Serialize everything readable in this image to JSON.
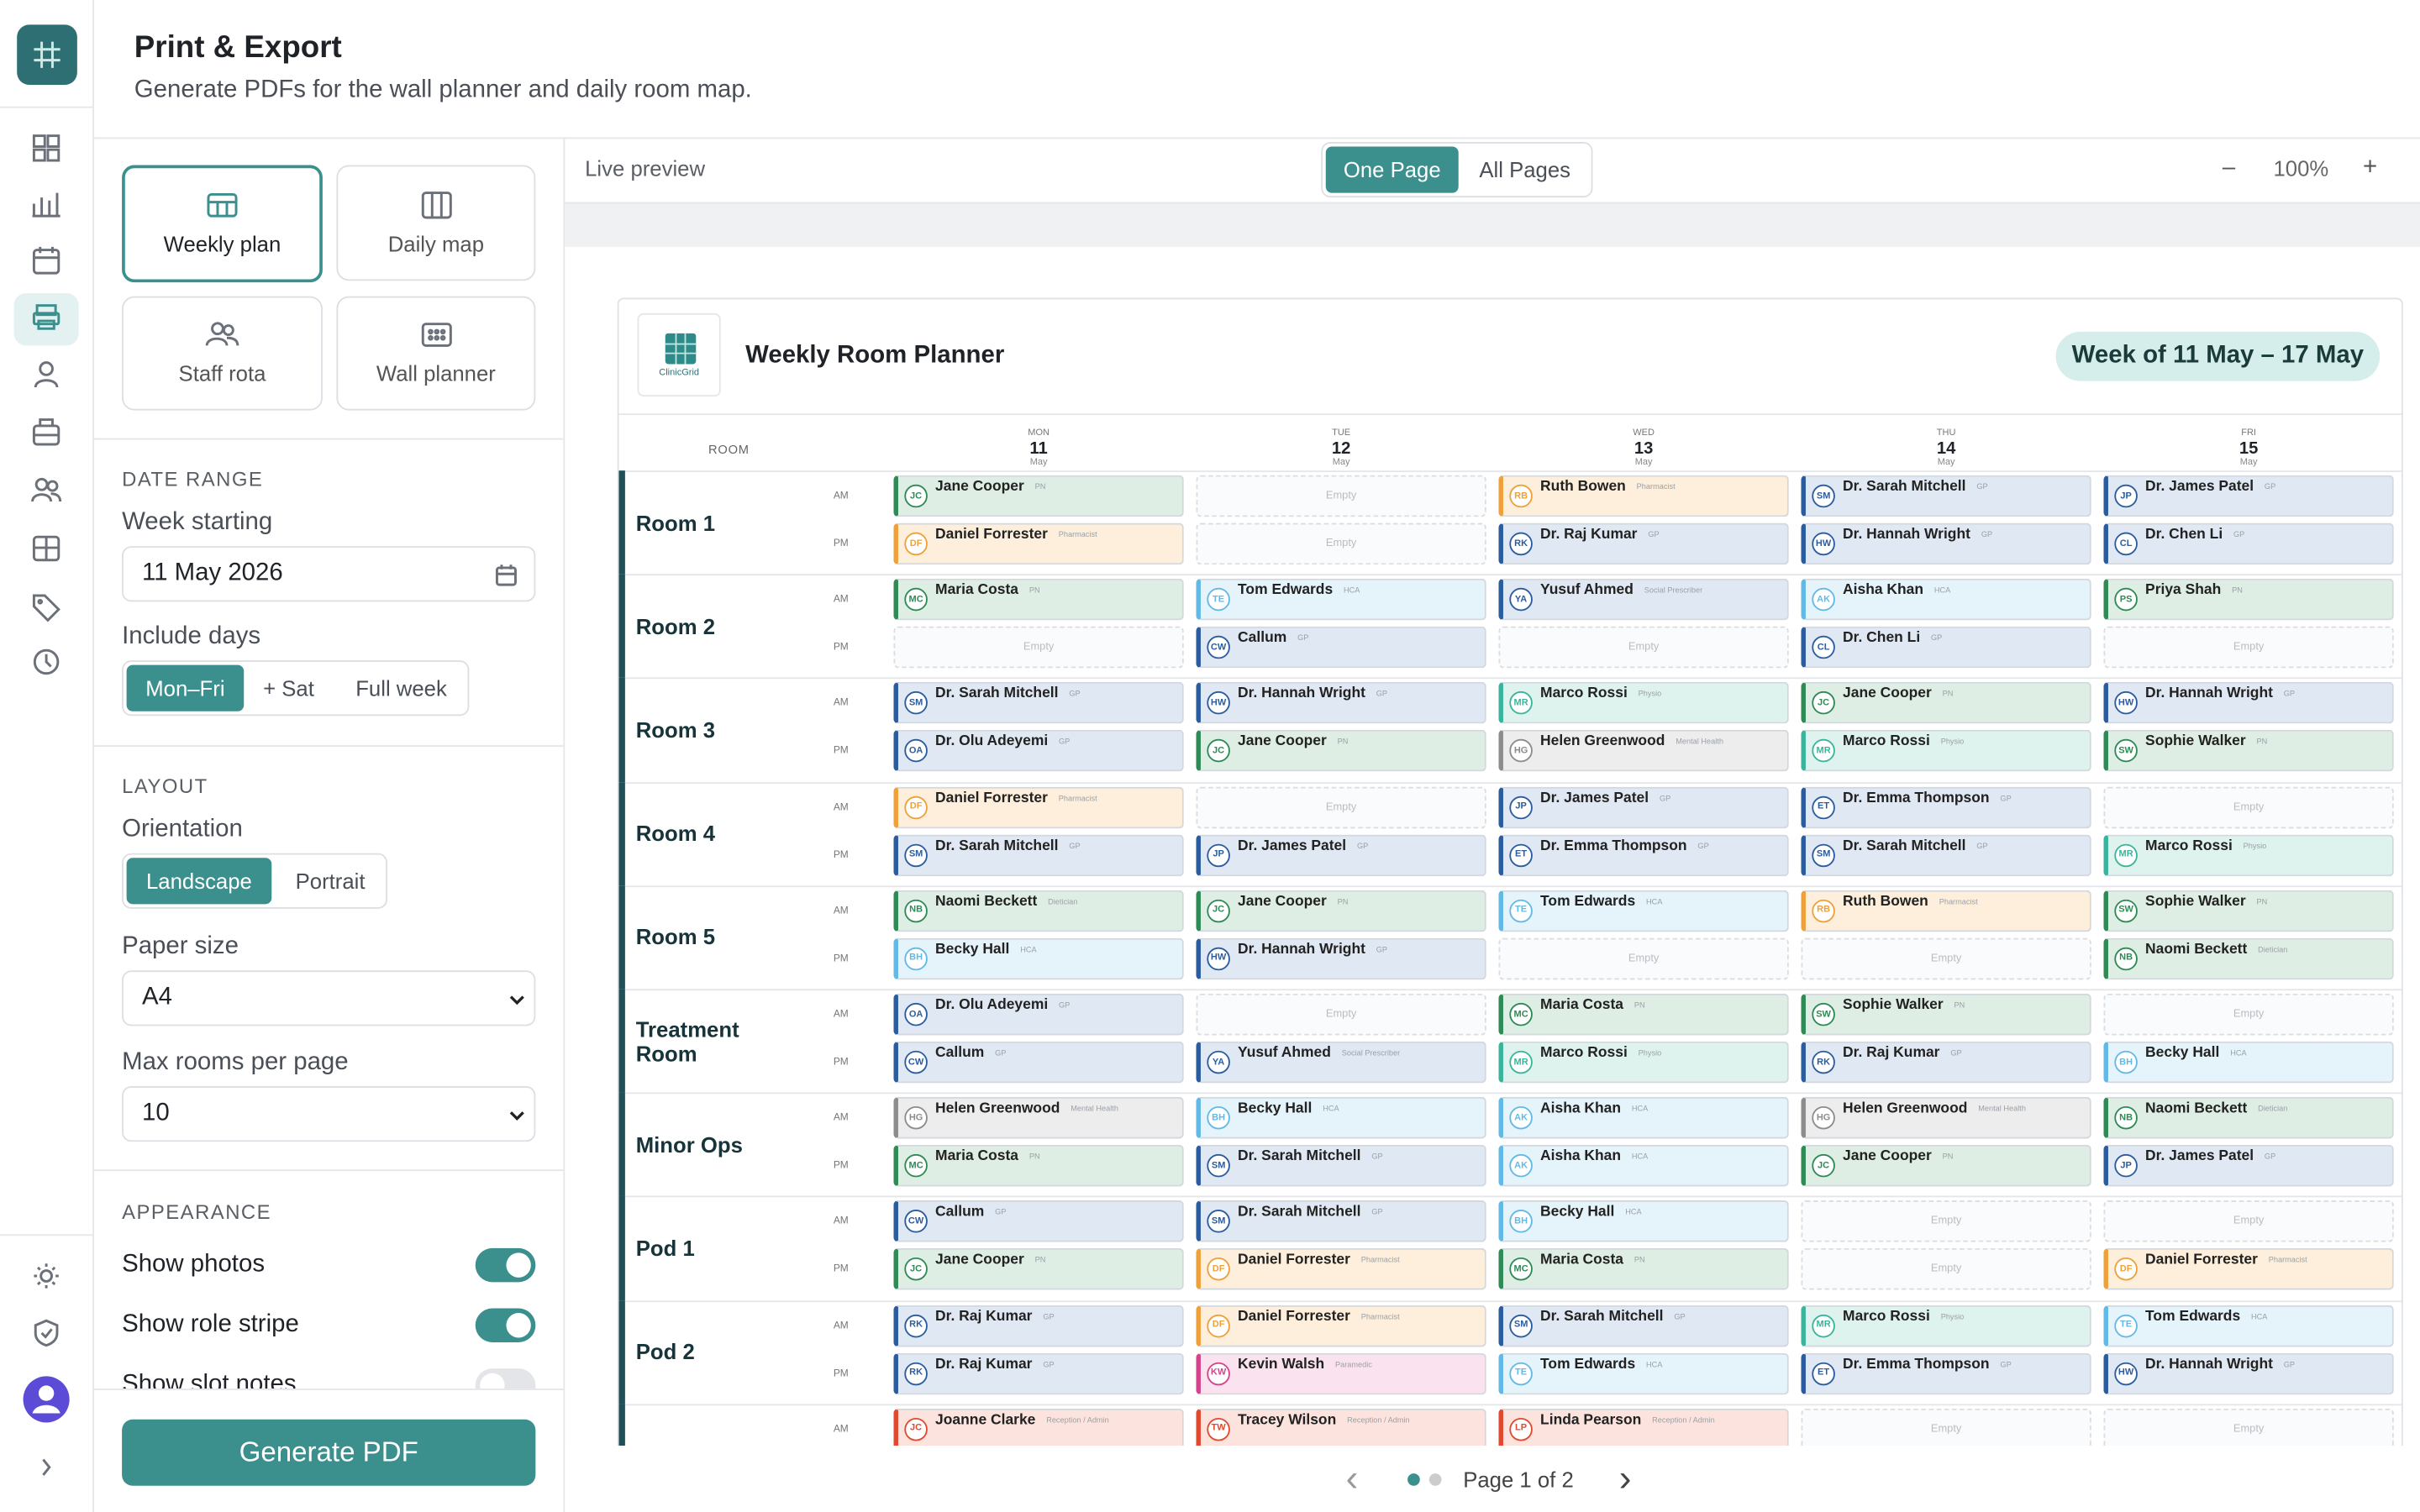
{
  "header": {
    "title": "Print & Export",
    "subtitle": "Generate PDFs for the wall planner and daily room map."
  },
  "panel": {
    "tabs": [
      "Weekly plan",
      "Daily map",
      "Staff rota",
      "Wall planner"
    ],
    "date_range": {
      "heading": "DATE RANGE",
      "week_label": "Week starting",
      "week_value": "11 May 2026",
      "include_label": "Include days",
      "include_options": [
        "Mon–Fri",
        "+ Sat",
        "Full week"
      ]
    },
    "layout": {
      "heading": "LAYOUT",
      "orientation_label": "Orientation",
      "orientation_options": [
        "Landscape",
        "Portrait"
      ],
      "paper_label": "Paper size",
      "paper_value": "A4",
      "max_rooms_label": "Max rooms per page",
      "max_rooms_value": "10"
    },
    "appearance": {
      "heading": "APPEARANCE",
      "toggles": [
        {
          "label": "Show photos",
          "on": true
        },
        {
          "label": "Show role stripe",
          "on": true
        },
        {
          "label": "Show slot notes",
          "on": false
        }
      ]
    },
    "button": "Generate PDF"
  },
  "toolbar": {
    "label": "Live preview",
    "modes": [
      "One Page",
      "All Pages"
    ],
    "zoom_out": "–",
    "zoom": "100%",
    "zoom_in": "+"
  },
  "pager": {
    "prev": "‹",
    "label": "Page 1 of 2",
    "next": "›"
  },
  "planner": {
    "logo_text": "ClinicGrid",
    "title": "Weekly Room Planner",
    "week": "Week of 11 May – 17 May",
    "room_header": "ROOM",
    "slots": [
      "AM",
      "PM"
    ],
    "days": [
      {
        "dow": "MON",
        "date": "11",
        "month": "May"
      },
      {
        "dow": "TUE",
        "date": "12",
        "month": "May"
      },
      {
        "dow": "WED",
        "date": "13",
        "month": "May"
      },
      {
        "dow": "THU",
        "date": "14",
        "month": "May"
      },
      {
        "dow": "FRI",
        "date": "15",
        "month": "May"
      }
    ],
    "role_styles": {
      "GP": {
        "stripe": "#2b5c9e",
        "fill": "#e0e8f3"
      },
      "PN": {
        "stripe": "#2f8a55",
        "fill": "#dfeee4"
      },
      "Pharmacist": {
        "stripe": "#eea13a",
        "fill": "#fdefdc"
      },
      "HCA": {
        "stripe": "#62b9e6",
        "fill": "#e5f3fb"
      },
      "Physio": {
        "stripe": "#3bb49c",
        "fill": "#dff3ee"
      },
      "Mental Health": {
        "stripe": "#8c8c8c",
        "fill": "#ededee"
      },
      "Social Prescriber": {
        "stripe": "#2b5c9e",
        "fill": "#e0e8f3"
      },
      "Dietician": {
        "stripe": "#2f8a55",
        "fill": "#dfeee4"
      },
      "Paramedic": {
        "stripe": "#d5438c",
        "fill": "#fae3ee"
      },
      "Reception / Admin": {
        "stripe": "#e04a2f",
        "fill": "#fde3de"
      }
    },
    "rooms": [
      {
        "name": "Room 1",
        "am": [
          [
            "JC",
            "Jane Cooper",
            "PN"
          ],
          [
            "Empty"
          ],
          [
            "RB",
            "Ruth Bowen",
            "Pharmacist"
          ],
          [
            "SM",
            "Dr. Sarah Mitchell",
            "GP"
          ],
          [
            "JP",
            "Dr. James Patel",
            "GP"
          ]
        ],
        "pm": [
          [
            "DF",
            "Daniel Forrester",
            "Pharmacist"
          ],
          [
            "Empty"
          ],
          [
            "RK",
            "Dr. Raj Kumar",
            "GP"
          ],
          [
            "HW",
            "Dr. Hannah Wright",
            "GP"
          ],
          [
            "CL",
            "Dr. Chen Li",
            "GP"
          ]
        ]
      },
      {
        "name": "Room 2",
        "am": [
          [
            "MC",
            "Maria Costa",
            "PN"
          ],
          [
            "TE",
            "Tom Edwards",
            "HCA"
          ],
          [
            "YA",
            "Yusuf Ahmed",
            "Social Prescriber"
          ],
          [
            "AK",
            "Aisha Khan",
            "HCA"
          ],
          [
            "PS",
            "Priya Shah",
            "PN"
          ]
        ],
        "pm": [
          [
            "Empty"
          ],
          [
            "CW",
            "Callum",
            "GP"
          ],
          [
            "Empty"
          ],
          [
            "CL",
            "Dr. Chen Li",
            "GP"
          ],
          [
            "Empty"
          ]
        ]
      },
      {
        "name": "Room 3",
        "am": [
          [
            "SM",
            "Dr. Sarah Mitchell",
            "GP"
          ],
          [
            "HW",
            "Dr. Hannah Wright",
            "GP"
          ],
          [
            "MR",
            "Marco Rossi",
            "Physio"
          ],
          [
            "JC",
            "Jane Cooper",
            "PN"
          ],
          [
            "HW",
            "Dr. Hannah Wright",
            "GP"
          ]
        ],
        "pm": [
          [
            "OA",
            "Dr. Olu Adeyemi",
            "GP"
          ],
          [
            "JC",
            "Jane Cooper",
            "PN"
          ],
          [
            "HG",
            "Helen Greenwood",
            "Mental Health"
          ],
          [
            "MR",
            "Marco Rossi",
            "Physio"
          ],
          [
            "SW",
            "Sophie Walker",
            "PN"
          ]
        ]
      },
      {
        "name": "Room 4",
        "am": [
          [
            "DF",
            "Daniel Forrester",
            "Pharmacist"
          ],
          [
            "Empty"
          ],
          [
            "JP",
            "Dr. James Patel",
            "GP"
          ],
          [
            "ET",
            "Dr. Emma Thompson",
            "GP"
          ],
          [
            "Empty"
          ]
        ],
        "pm": [
          [
            "SM",
            "Dr. Sarah Mitchell",
            "GP"
          ],
          [
            "JP",
            "Dr. James Patel",
            "GP"
          ],
          [
            "ET",
            "Dr. Emma Thompson",
            "GP"
          ],
          [
            "SM",
            "Dr. Sarah Mitchell",
            "GP"
          ],
          [
            "MR",
            "Marco Rossi",
            "Physio"
          ]
        ]
      },
      {
        "name": "Room 5",
        "am": [
          [
            "NB",
            "Naomi Beckett",
            "Dietician"
          ],
          [
            "JC",
            "Jane Cooper",
            "PN"
          ],
          [
            "TE",
            "Tom Edwards",
            "HCA"
          ],
          [
            "RB",
            "Ruth Bowen",
            "Pharmacist"
          ],
          [
            "SW",
            "Sophie Walker",
            "PN"
          ]
        ],
        "pm": [
          [
            "BH",
            "Becky Hall",
            "HCA"
          ],
          [
            "HW",
            "Dr. Hannah Wright",
            "GP"
          ],
          [
            "Empty"
          ],
          [
            "Empty"
          ],
          [
            "NB",
            "Naomi Beckett",
            "Dietician"
          ]
        ]
      },
      {
        "name": "Treatment Room",
        "am": [
          [
            "OA",
            "Dr. Olu Adeyemi",
            "GP"
          ],
          [
            "Empty"
          ],
          [
            "MC",
            "Maria Costa",
            "PN"
          ],
          [
            "SW",
            "Sophie Walker",
            "PN"
          ],
          [
            "Empty"
          ]
        ],
        "pm": [
          [
            "CW",
            "Callum",
            "GP"
          ],
          [
            "YA",
            "Yusuf Ahmed",
            "Social Prescriber"
          ],
          [
            "MR",
            "Marco Rossi",
            "Physio"
          ],
          [
            "RK",
            "Dr. Raj Kumar",
            "GP"
          ],
          [
            "BH",
            "Becky Hall",
            "HCA"
          ]
        ]
      },
      {
        "name": "Minor Ops",
        "am": [
          [
            "HG",
            "Helen Greenwood",
            "Mental Health"
          ],
          [
            "BH",
            "Becky Hall",
            "HCA"
          ],
          [
            "AK",
            "Aisha Khan",
            "HCA"
          ],
          [
            "HG",
            "Helen Greenwood",
            "Mental Health"
          ],
          [
            "NB",
            "Naomi Beckett",
            "Dietician"
          ]
        ],
        "pm": [
          [
            "MC",
            "Maria Costa",
            "PN"
          ],
          [
            "SM",
            "Dr. Sarah Mitchell",
            "GP"
          ],
          [
            "AK",
            "Aisha Khan",
            "HCA"
          ],
          [
            "JC",
            "Jane Cooper",
            "PN"
          ],
          [
            "JP",
            "Dr. James Patel",
            "GP"
          ]
        ]
      },
      {
        "name": "Pod 1",
        "am": [
          [
            "CW",
            "Callum",
            "GP"
          ],
          [
            "SM",
            "Dr. Sarah Mitchell",
            "GP"
          ],
          [
            "BH",
            "Becky Hall",
            "HCA"
          ],
          [
            "Empty"
          ],
          [
            "Empty"
          ]
        ],
        "pm": [
          [
            "JC",
            "Jane Cooper",
            "PN"
          ],
          [
            "DF",
            "Daniel Forrester",
            "Pharmacist"
          ],
          [
            "MC",
            "Maria Costa",
            "PN"
          ],
          [
            "Empty"
          ],
          [
            "DF",
            "Daniel Forrester",
            "Pharmacist"
          ]
        ]
      },
      {
        "name": "Pod 2",
        "am": [
          [
            "RK",
            "Dr. Raj Kumar",
            "GP"
          ],
          [
            "DF",
            "Daniel Forrester",
            "Pharmacist"
          ],
          [
            "SM",
            "Dr. Sarah Mitchell",
            "GP"
          ],
          [
            "MR",
            "Marco Rossi",
            "Physio"
          ],
          [
            "TE",
            "Tom Edwards",
            "HCA"
          ]
        ],
        "pm": [
          [
            "RK",
            "Dr. Raj Kumar",
            "GP"
          ],
          [
            "KW",
            "Kevin Walsh",
            "Paramedic"
          ],
          [
            "TE",
            "Tom Edwards",
            "HCA"
          ],
          [
            "ET",
            "Dr. Emma Thompson",
            "GP"
          ],
          [
            "HW",
            "Dr. Hannah Wright",
            "GP"
          ]
        ]
      },
      {
        "am": [
          [
            "JC",
            "Joanne Clarke",
            "Reception / Admin"
          ],
          [
            "TW",
            "Tracey Wilson",
            "Reception / Admin"
          ],
          [
            "LP",
            "Linda Pearson",
            "Reception / Admin"
          ],
          [
            "Empty"
          ],
          [
            "Empty"
          ]
        ]
      }
    ]
  }
}
